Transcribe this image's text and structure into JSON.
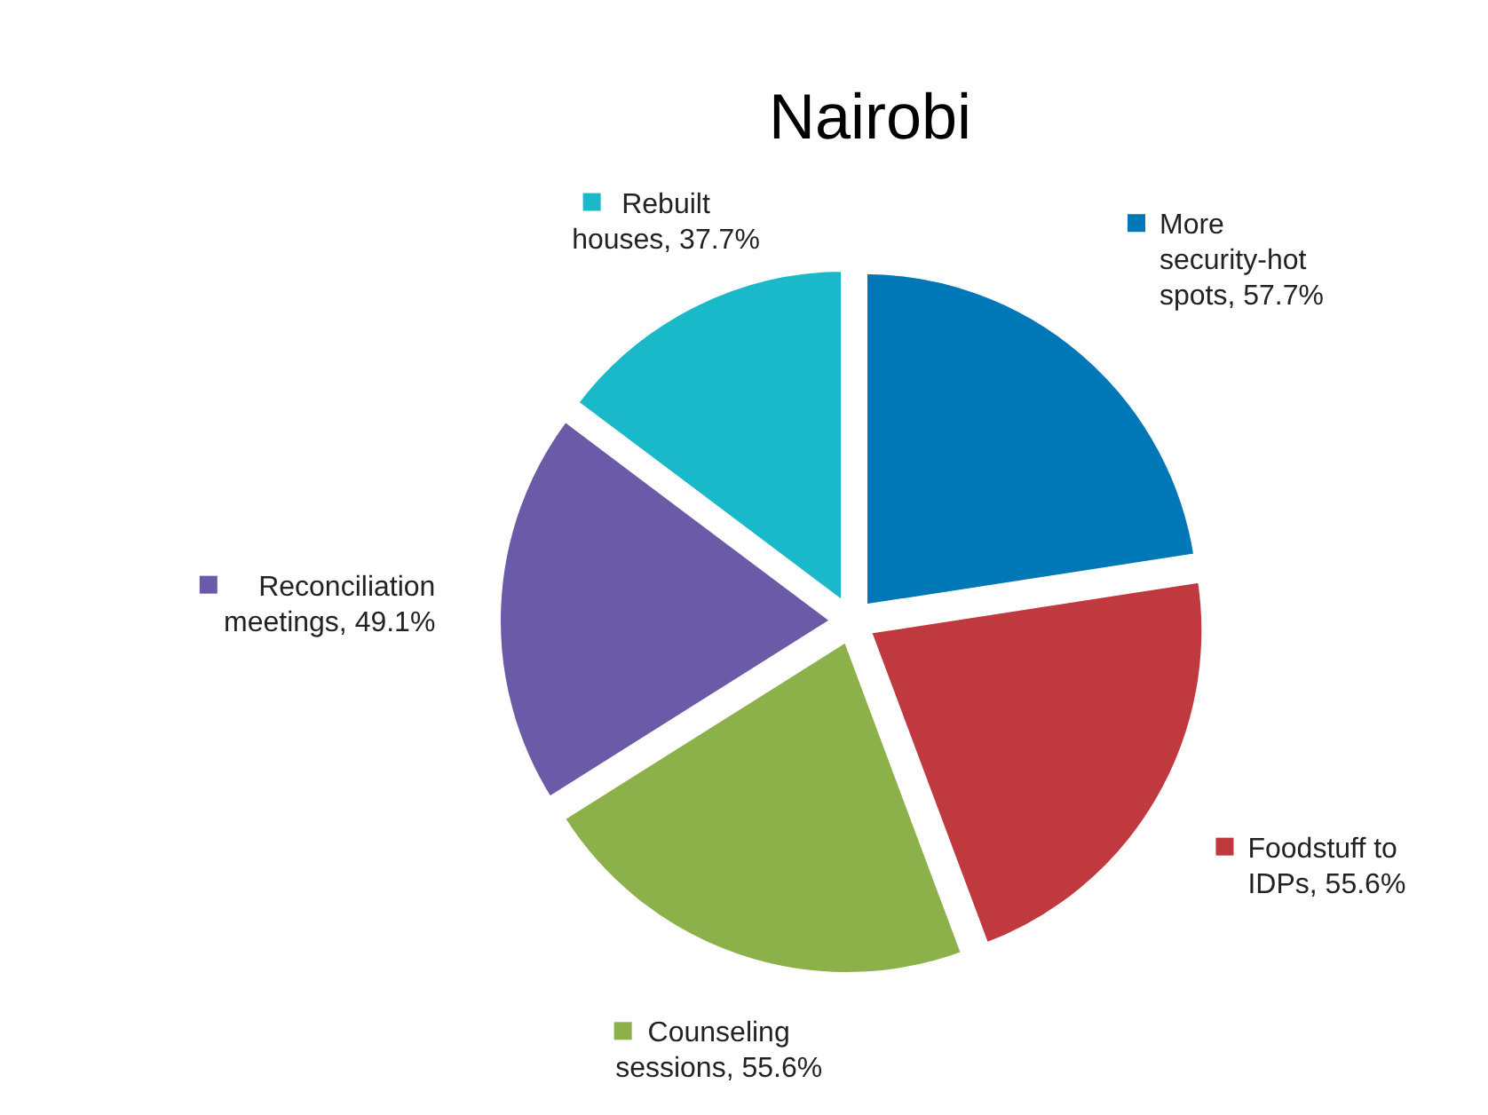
{
  "chart_data": {
    "type": "pie",
    "title": "Nairobi",
    "categories": [
      "More security-hot spots",
      "Foodstuff to IDPs",
      "Counseling sessions",
      "Reconciliation meetings",
      "Rebuilt houses"
    ],
    "values": [
      57.7,
      55.6,
      55.6,
      49.1,
      37.7
    ],
    "value_labels": [
      "57.7%",
      "55.6%",
      "55.6%",
      "49.1%",
      "37.7%"
    ],
    "legend": "bottom left",
    "colors": [
      "#0077b6",
      "#c0393f",
      "#8cb04a",
      "#6a5aa8",
      "#1ab9c9"
    ]
  }
}
